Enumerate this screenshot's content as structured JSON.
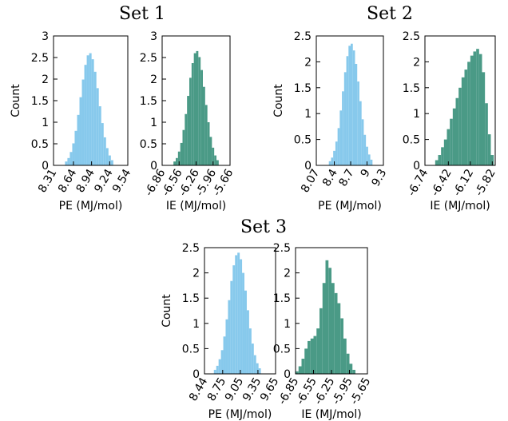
{
  "chart_data": [
    {
      "type": "histogram",
      "title": "Set 1",
      "panels": [
        {
          "ylabel": "Count",
          "xlabel": "PE (MJ/mol)",
          "color": "#87c9ec",
          "bins": [
            8.5,
            8.54,
            8.58,
            8.62,
            8.66,
            8.7,
            8.74,
            8.78,
            8.82,
            8.86,
            8.9,
            8.94,
            8.98,
            9.02,
            9.06,
            9.1,
            9.14,
            9.18,
            9.22,
            9.26,
            9.3
          ],
          "counts": [
            0.09,
            0.17,
            0.31,
            0.51,
            0.8,
            1.17,
            1.58,
            1.99,
            2.33,
            2.55,
            2.6,
            2.46,
            2.17,
            1.79,
            1.37,
            0.98,
            0.65,
            0.4,
            0.23,
            0.12
          ],
          "xlim": [
            8.31,
            9.54
          ],
          "xticks": [
            8.31,
            8.64,
            8.94,
            9.24,
            9.54
          ],
          "ylim": [
            0,
            3
          ],
          "yticks": [
            0,
            0.5,
            1,
            1.5,
            2,
            2.5,
            3
          ]
        },
        {
          "xlabel": "IE (MJ/mol)",
          "color": "#4a9a86",
          "bins": [
            -6.66,
            -6.62,
            -6.58,
            -6.54,
            -6.5,
            -6.46,
            -6.42,
            -6.38,
            -6.34,
            -6.3,
            -6.26,
            -6.22,
            -6.18,
            -6.14,
            -6.1,
            -6.06,
            -6.02,
            -5.98,
            -5.94,
            -5.9,
            -5.86
          ],
          "counts": [
            0.09,
            0.17,
            0.32,
            0.52,
            0.82,
            1.19,
            1.61,
            2.03,
            2.37,
            2.6,
            2.65,
            2.51,
            2.21,
            1.82,
            1.4,
            1.0,
            0.66,
            0.41,
            0.23,
            0.12
          ],
          "xlim": [
            -6.86,
            -5.66
          ],
          "xticks": [
            -6.86,
            -6.56,
            -6.26,
            -5.96,
            -5.66
          ],
          "ylim": [
            0,
            3
          ],
          "yticks": [
            0,
            0.5,
            1,
            1.5,
            2,
            2.5,
            3
          ]
        }
      ]
    },
    {
      "type": "histogram",
      "title": "Set 2",
      "panels": [
        {
          "ylabel": "Count",
          "xlabel": "PE (MJ/mol)",
          "color": "#87c9ec",
          "bins": [
            8.3,
            8.34,
            8.38,
            8.42,
            8.46,
            8.5,
            8.54,
            8.58,
            8.62,
            8.66,
            8.7,
            8.74,
            8.78,
            8.82,
            8.86,
            8.9,
            8.94,
            8.98,
            9.02,
            9.06,
            9.1
          ],
          "counts": [
            0.08,
            0.15,
            0.28,
            0.46,
            0.72,
            1.06,
            1.43,
            1.8,
            2.11,
            2.31,
            2.35,
            2.22,
            1.96,
            1.62,
            1.24,
            0.89,
            0.59,
            0.36,
            0.21,
            0.11
          ],
          "xlim": [
            8.07,
            9.3
          ],
          "xticks": [
            8.07,
            8.4,
            8.7,
            9,
            9.3
          ],
          "ylim": [
            0,
            2.5
          ],
          "yticks": [
            0,
            0.5,
            1,
            1.5,
            2,
            2.5
          ]
        },
        {
          "xlabel": "IE (MJ/mol)",
          "color": "#4a9a86",
          "bins": [
            -6.6,
            -6.56,
            -6.52,
            -6.48,
            -6.44,
            -6.4,
            -6.36,
            -6.32,
            -6.28,
            -6.24,
            -6.2,
            -6.16,
            -6.12,
            -6.08,
            -6.04,
            -6.0,
            -5.96,
            -5.92,
            -5.88,
            -5.84,
            -5.8
          ],
          "counts": [
            0.1,
            0.2,
            0.35,
            0.5,
            0.7,
            0.9,
            1.1,
            1.3,
            1.5,
            1.7,
            1.85,
            2.0,
            2.12,
            2.2,
            2.25,
            2.15,
            1.8,
            1.2,
            0.6,
            0.2
          ],
          "xlim": [
            -6.74,
            -5.78
          ],
          "xticks": [
            -6.74,
            -6.42,
            -6.12,
            -5.82
          ],
          "ylim": [
            0,
            2.5
          ],
          "yticks": [
            0,
            0.5,
            1,
            1.5,
            2,
            2.5
          ]
        }
      ]
    },
    {
      "type": "histogram",
      "title": "Set 3",
      "panels": [
        {
          "ylabel": "Count",
          "xlabel": "PE (MJ/mol)",
          "color": "#87c9ec",
          "bins": [
            8.6,
            8.64,
            8.68,
            8.72,
            8.76,
            8.8,
            8.84,
            8.88,
            8.92,
            8.96,
            9.0,
            9.04,
            9.08,
            9.12,
            9.16,
            9.2,
            9.24,
            9.28,
            9.32,
            9.36,
            9.4
          ],
          "counts": [
            0.08,
            0.16,
            0.29,
            0.47,
            0.74,
            1.08,
            1.46,
            1.84,
            2.15,
            2.35,
            2.4,
            2.27,
            2.0,
            1.65,
            1.26,
            0.9,
            0.6,
            0.37,
            0.21,
            0.11
          ],
          "xlim": [
            8.44,
            9.65
          ],
          "xticks": [
            8.44,
            8.75,
            9.05,
            9.35,
            9.65
          ],
          "ylim": [
            0,
            2.5
          ],
          "yticks": [
            0,
            0.5,
            1,
            1.5,
            2,
            2.5
          ]
        },
        {
          "xlabel": "IE (MJ/mol)",
          "color": "#4a9a86",
          "bins": [
            -6.85,
            -6.8,
            -6.75,
            -6.7,
            -6.65,
            -6.6,
            -6.55,
            -6.5,
            -6.45,
            -6.4,
            -6.35,
            -6.3,
            -6.25,
            -6.2,
            -6.15,
            -6.1,
            -6.05,
            -6.0,
            -5.95,
            -5.9,
            -5.85
          ],
          "counts": [
            0.05,
            0.15,
            0.3,
            0.5,
            0.65,
            0.7,
            0.75,
            0.9,
            1.3,
            1.8,
            2.25,
            2.1,
            1.8,
            1.6,
            1.4,
            1.1,
            0.7,
            0.4,
            0.2,
            0.08
          ],
          "xlim": [
            -6.85,
            -5.65
          ],
          "xticks": [
            -6.85,
            -6.55,
            -6.25,
            -5.95,
            -5.65
          ],
          "ylim": [
            0,
            2.5
          ],
          "yticks": [
            0,
            0.5,
            1,
            1.5,
            2,
            2.5
          ]
        }
      ]
    }
  ]
}
